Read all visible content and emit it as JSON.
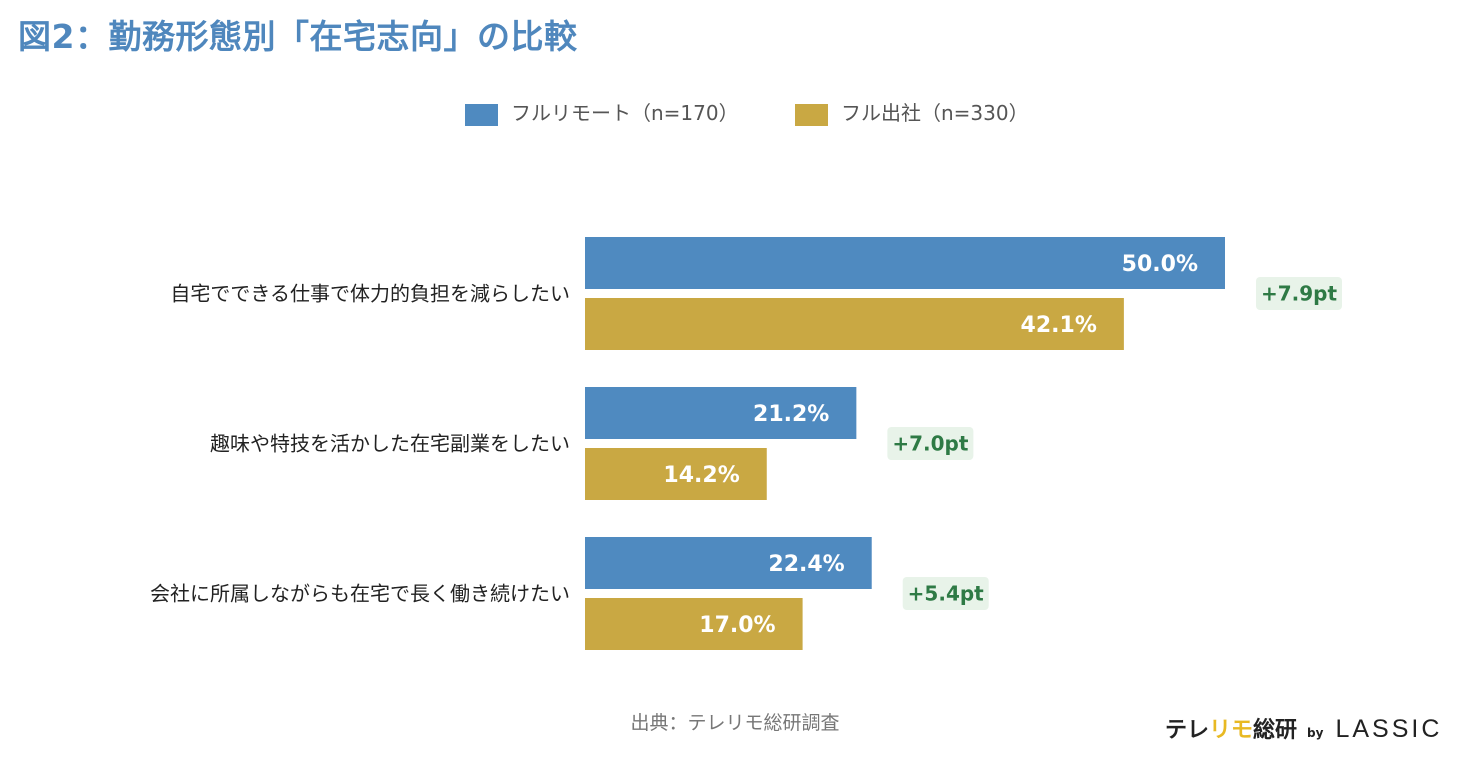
{
  "title": "図2：勤務形態別「在宅志向」の比較",
  "source": "出典：テレリモ総研調査",
  "logo": {
    "part1": "テレ",
    "part2": "リモ",
    "part3": "総研",
    "by": "by",
    "brand": "LASSIC"
  },
  "chart_data": {
    "type": "bar",
    "orientation": "horizontal",
    "title": "図2：勤務形態別「在宅志向」の比較",
    "legend_position": "top",
    "grid": false,
    "xlim": [
      0,
      50
    ],
    "categories": [
      "自宅でできる仕事で体力的負担を減らしたい",
      "趣味や特技を活かした在宅副業をしたい",
      "会社に所属しながらも在宅で長く働き続けたい"
    ],
    "series": [
      {
        "name": "フルリモート（n=170）",
        "color": "#4f8ac0",
        "values": [
          50.0,
          21.2,
          22.4
        ],
        "labels": [
          "50.0%",
          "21.2%",
          "22.4%"
        ]
      },
      {
        "name": "フル出社（n=330）",
        "color": "#c9a843",
        "values": [
          42.1,
          14.2,
          17.0
        ],
        "labels": [
          "42.1%",
          "14.2%",
          "17.0%"
        ]
      }
    ],
    "differences": [
      "+7.9pt",
      "+7.0pt",
      "+5.4pt"
    ],
    "difference_colors": {
      "background": "#e8f3e9",
      "text": "#2e7a45"
    }
  }
}
